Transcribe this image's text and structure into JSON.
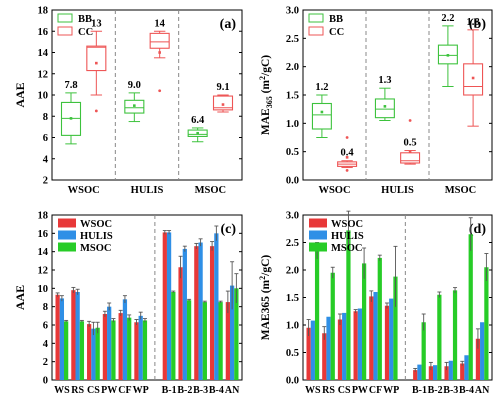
{
  "chart_data": [
    {
      "panel": "(a)",
      "type": "box",
      "ylabel": "AAE",
      "ylim": [
        2,
        18
      ],
      "yticks": [
        2,
        4,
        6,
        8,
        10,
        12,
        14,
        16,
        18
      ],
      "categories": [
        "WSOC",
        "HULIS",
        "MSOC"
      ],
      "legend": [
        "BB",
        "CC"
      ],
      "legend_position": "top-left",
      "colors": {
        "BB": "#3dc23d",
        "CC": "#ee5555"
      },
      "series": [
        {
          "name": "BB",
          "boxes": [
            {
              "category": "WSOC",
              "whisker_low": 5.4,
              "q1": 6.2,
              "median": 7.8,
              "q3": 9.3,
              "whisker_high": 10.2,
              "mean": 7.8,
              "label": "7.8"
            },
            {
              "category": "HULIS",
              "whisker_low": 7.5,
              "q1": 8.3,
              "median": 8.8,
              "q3": 9.5,
              "whisker_high": 10.2,
              "mean": 9.0,
              "label": "9.0"
            },
            {
              "category": "MSOC",
              "whisker_low": 5.6,
              "q1": 6.1,
              "median": 6.3,
              "q3": 6.7,
              "whisker_high": 6.9,
              "mean": 6.4,
              "label": "6.4"
            }
          ]
        },
        {
          "name": "CC",
          "boxes": [
            {
              "category": "WSOC",
              "whisker_low": 10.0,
              "q1": 12.3,
              "median": 14.5,
              "q3": 14.6,
              "whisker_high": 16.0,
              "mean": 13.0,
              "label": "13",
              "outliers": [
                8.5
              ]
            },
            {
              "category": "HULIS",
              "whisker_low": 13.5,
              "q1": 14.4,
              "median": 15.0,
              "q3": 15.8,
              "whisker_high": 16.0,
              "mean": 14.0,
              "label": "14",
              "outliers": [
                10.4
              ]
            },
            {
              "category": "MSOC",
              "whisker_low": 8.4,
              "q1": 8.6,
              "median": 8.8,
              "q3": 9.9,
              "whisker_high": 10.0,
              "mean": 9.1,
              "label": "9.1"
            }
          ]
        }
      ]
    },
    {
      "panel": "(b)",
      "type": "box",
      "ylabel": "MAE365 (m2/gC)",
      "ylim": [
        0.0,
        3.0
      ],
      "yticks": [
        0.0,
        0.5,
        1.0,
        1.5,
        2.0,
        2.5,
        3.0
      ],
      "categories": [
        "WSOC",
        "HULIS",
        "MSOC"
      ],
      "legend": [
        "BB",
        "CC"
      ],
      "legend_position": "top-left",
      "colors": {
        "BB": "#3dc23d",
        "CC": "#ee5555"
      },
      "series": [
        {
          "name": "BB",
          "boxes": [
            {
              "category": "WSOC",
              "whisker_low": 0.75,
              "q1": 0.9,
              "median": 1.15,
              "q3": 1.35,
              "whisker_high": 1.5,
              "mean": 1.2,
              "label": "1.2"
            },
            {
              "category": "HULIS",
              "whisker_low": 1.05,
              "q1": 1.1,
              "median": 1.25,
              "q3": 1.43,
              "whisker_high": 1.62,
              "mean": 1.3,
              "label": "1.3"
            },
            {
              "category": "MSOC",
              "whisker_low": 1.65,
              "q1": 2.05,
              "median": 2.2,
              "q3": 2.38,
              "whisker_high": 2.72,
              "mean": 2.2,
              "label": "2.2"
            }
          ]
        },
        {
          "name": "CC",
          "boxes": [
            {
              "category": "WSOC",
              "whisker_low": 0.22,
              "q1": 0.24,
              "median": 0.28,
              "q3": 0.32,
              "whisker_high": 0.34,
              "mean": 0.4,
              "label": "0.4",
              "outliers": [
                0.75,
                0.17
              ]
            },
            {
              "category": "HULIS",
              "whisker_low": 0.28,
              "q1": 0.3,
              "median": 0.34,
              "q3": 0.48,
              "whisker_high": 0.52,
              "mean": 0.5,
              "label": "0.5",
              "outliers": [
                1.05
              ]
            },
            {
              "category": "MSOC",
              "whisker_low": 0.95,
              "q1": 1.5,
              "median": 1.65,
              "q3": 2.05,
              "whisker_high": 2.65,
              "mean": 1.8,
              "label": "1.8"
            }
          ]
        }
      ]
    },
    {
      "panel": "(c)",
      "type": "bar",
      "ylabel": "AAE",
      "ylim": [
        0,
        18
      ],
      "yticks": [
        0,
        2,
        4,
        6,
        8,
        10,
        12,
        14,
        16,
        18
      ],
      "categories": [
        "WS",
        "RS",
        "CS",
        "PW",
        "CF",
        "WP",
        "B-1",
        "B-2",
        "B-3",
        "B-4",
        "AN"
      ],
      "legend_position": "top-left",
      "series": [
        {
          "name": "WSOC",
          "color": "#e83838",
          "values": [
            9.3,
            9.8,
            6.1,
            7.2,
            7.3,
            6.3,
            16.1,
            12.3,
            14.6,
            14.6,
            8.5
          ],
          "errors": [
            0.2,
            0.3,
            0.3,
            0.3,
            0.3,
            0.3,
            0.2,
            1.2,
            0.3,
            0.5,
            1.2
          ]
        },
        {
          "name": "HULIS",
          "color": "#2f8fe6",
          "values": [
            8.9,
            9.6,
            5.6,
            8.0,
            8.8,
            7.0,
            16.1,
            14.3,
            15.0,
            16.0,
            10.3
          ],
          "errors": [
            0.3,
            0.3,
            0.7,
            0.4,
            0.4,
            0.4,
            0.2,
            0.3,
            0.4,
            0.8,
            2.6
          ]
        },
        {
          "name": "MSOC",
          "color": "#27cc27",
          "values": [
            6.4,
            6.4,
            5.7,
            6.5,
            6.8,
            6.5,
            9.6,
            8.7,
            8.5,
            8.5,
            10.0
          ],
          "errors": [
            0.1,
            0.1,
            0.6,
            0.2,
            0.3,
            0.2,
            0.1,
            0.1,
            0.1,
            0.1,
            1.6
          ]
        }
      ]
    },
    {
      "panel": "(d)",
      "type": "bar",
      "ylabel": "MAE365 (m2/gC)",
      "ylim": [
        0.0,
        3.0
      ],
      "yticks": [
        0.0,
        0.5,
        1.0,
        1.5,
        2.0,
        2.5,
        3.0
      ],
      "categories": [
        "WS",
        "RS",
        "CS",
        "PW",
        "CF",
        "WP",
        "B-1",
        "B-2",
        "B-3",
        "B-4",
        "AN"
      ],
      "legend_position": "top-left",
      "series": [
        {
          "name": "WSOC",
          "color": "#e83838",
          "values": [
            0.95,
            0.85,
            1.1,
            1.25,
            1.52,
            1.35,
            0.18,
            0.25,
            0.25,
            0.3,
            0.75
          ],
          "errors": [
            0.15,
            0.12,
            0.1,
            0.03,
            0.1,
            0.05,
            0.03,
            0.07,
            0.07,
            0.04,
            0.18
          ]
        },
        {
          "name": "HULIS",
          "color": "#2f8fe6",
          "values": [
            1.08,
            1.15,
            1.22,
            1.3,
            1.6,
            1.48,
            0.28,
            0.27,
            0.35,
            0.45,
            1.05
          ]
        },
        {
          "name": "MSOC",
          "color": "#27cc27",
          "values": [
            2.35,
            1.95,
            2.72,
            2.12,
            2.22,
            1.88,
            1.05,
            1.55,
            1.63,
            2.65,
            2.05
          ],
          "errors": [
            0.15,
            0.1,
            0.35,
            0.28,
            0.05,
            0.55,
            0.15,
            0.05,
            0.05,
            0.3,
            0.25
          ]
        }
      ]
    }
  ]
}
